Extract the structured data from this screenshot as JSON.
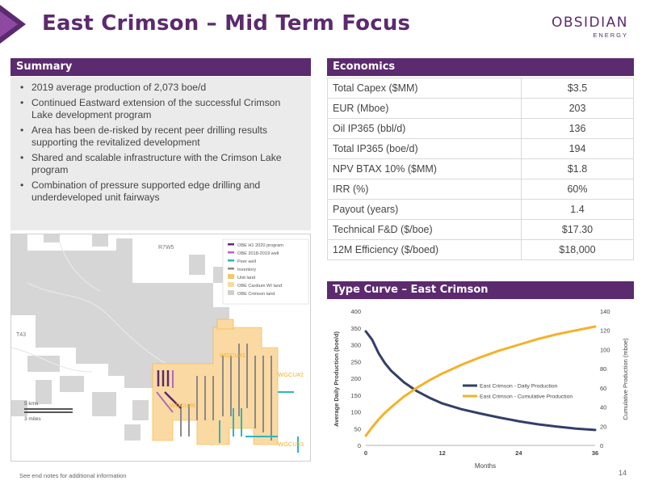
{
  "header": {
    "title": "East Crimson – Mid Term Focus",
    "logo_name": "OBSIDIAN",
    "logo_sub": "ENERGY"
  },
  "summary": {
    "heading": "Summary",
    "bullets": [
      "2019 average production of 2,073 boe/d",
      "Continued Eastward extension of the successful Crimson Lake development program",
      "Area has been de-risked by recent peer drilling results supporting the revitalized development",
      "Shared and scalable infrastructure with the Crimson Lake program",
      "Combination of pressure supported edge drilling and underdeveloped unit fairways"
    ]
  },
  "economics": {
    "heading": "Economics",
    "rows": [
      {
        "label": "Total Capex ($MM)",
        "value": "$3.5"
      },
      {
        "label": "EUR (Mboe)",
        "value": "203"
      },
      {
        "label": "Oil IP365 (bbl/d)",
        "value": "136"
      },
      {
        "label": "Total IP365 (boe/d)",
        "value": "194"
      },
      {
        "label": "NPV BTAX 10% ($MM)",
        "value": "$1.8"
      },
      {
        "label": "IRR (%)",
        "value": "60%"
      },
      {
        "label": "Payout (years)",
        "value": "1.4"
      },
      {
        "label": "Technical F&D ($/boe)",
        "value": "$17.30"
      },
      {
        "label": "12M Efficiency ($/boed)",
        "value": "$18,000"
      }
    ]
  },
  "map": {
    "legend": [
      {
        "label": "OBE H1 2020 program",
        "color": "#5c2a6e"
      },
      {
        "label": "OBE 2018-2019 well",
        "color": "#b46ab8"
      },
      {
        "label": "Peer well",
        "color": "#2ab7bd"
      },
      {
        "label": "Inventory",
        "color": "#8a8a8a"
      },
      {
        "label": "Unit land",
        "color": "#f2c96a"
      },
      {
        "label": "OBE Cardium WI land",
        "color": "#fbd9a3"
      },
      {
        "label": "OBE Crimson land",
        "color": "#cfcfcf"
      }
    ],
    "labels": {
      "range": "R7W5",
      "township": "T43",
      "unit1": "WGCU#1",
      "unit2": "WGCU#2",
      "unit3": "WGCU#3",
      "unit4": "WGCU#6",
      "scale_km": "5 kms",
      "scale_mi": "3 miles"
    }
  },
  "type_curve": {
    "heading": "Type Curve – East Crimson",
    "colors": {
      "daily": "#333f66",
      "cumulative": "#f5b12a"
    },
    "chart_data": {
      "type": "line",
      "xlabel": "Months",
      "ylabel": "Average Daily Production (boe/d)",
      "y2label": "Cumulative Production (mboe)",
      "xlim": [
        0,
        36
      ],
      "ylim": [
        0,
        400
      ],
      "y2lim": [
        0,
        140
      ],
      "xticks": [
        "0",
        "12",
        "24",
        "36"
      ],
      "yticks": [
        "0",
        "50",
        "100",
        "150",
        "200",
        "250",
        "300",
        "350",
        "400"
      ],
      "y2ticks": [
        "0",
        "20",
        "40",
        "60",
        "80",
        "100",
        "120",
        "140"
      ],
      "legend_position": "center-right",
      "series": [
        {
          "name": "East Crimson - Daily Production",
          "axis": "left",
          "x": [
            0,
            1,
            2,
            3,
            4,
            6,
            8,
            10,
            12,
            15,
            18,
            21,
            24,
            27,
            30,
            33,
            36
          ],
          "y": [
            340,
            315,
            275,
            245,
            222,
            188,
            162,
            142,
            125,
            108,
            95,
            83,
            72,
            63,
            56,
            50,
            46
          ]
        },
        {
          "name": "East Crimson - Cumulative Production",
          "axis": "right",
          "x": [
            0,
            1,
            2,
            3,
            4,
            6,
            8,
            10,
            12,
            15,
            18,
            21,
            24,
            27,
            30,
            33,
            36
          ],
          "y": [
            10,
            19,
            27,
            34,
            40,
            51,
            60,
            68,
            75,
            84,
            92,
            99,
            105,
            111,
            116,
            120,
            124
          ]
        }
      ]
    }
  },
  "footer": {
    "note": "See end notes for additional information",
    "page": "14"
  }
}
